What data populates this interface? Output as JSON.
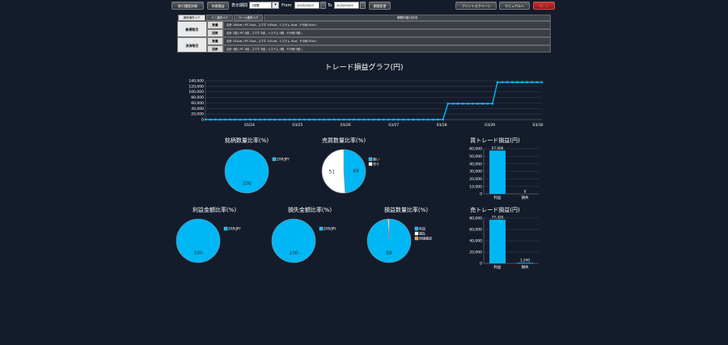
{
  "toolbar": {
    "btn_detail": "取引履歴詳細",
    "btn_annual": "年間損益",
    "period_label": "表示期間",
    "period_value": "1週間",
    "from_label": "From",
    "from_value": "2025/03/23",
    "to_label": "To",
    "to_value": "2025/03/29",
    "btn_change": "期間変更",
    "btn_print": "プリントスクリーン",
    "btn_manual": "マニュアルへ",
    "btn_close": "閉じる"
  },
  "summary": {
    "tabs": [
      "通常通貨ペア",
      "ミニ通貨ペア",
      "ラージ通貨ペア"
    ],
    "header": "期間内取引状況",
    "groups": [
      {
        "label": "新規取引",
        "rows": [
          {
            "sub": "数量",
            "value": "合計 100Lot ( PC 0Lot , スマホ 100Lot , システム 0Lot , その他 0Lot )"
          },
          {
            "sub": "回数",
            "value": "合計 2回 ( PC 0回 , スマホ 2回 , システム 0回 , その他 0回 )"
          }
        ]
      },
      {
        "label": "決済取引",
        "rows": [
          {
            "sub": "数量",
            "value": "合計 101Lot ( PC 0Lot , スマホ 101Lot , システム 0Lot , その他 0Lot )"
          },
          {
            "sub": "回数",
            "value": "合計 4回 ( PC 1回 , スマホ 3回 , システム 0回 , その他 0回 )"
          }
        ]
      }
    ]
  },
  "line_chart_title": "トレード損益グラフ(円)",
  "pie_titles": {
    "symbol_qty": "銘柄数量比率(%)",
    "side_qty": "売買数量比率(%)",
    "profit_amt": "利益金額比率(%)",
    "loss_amt": "損失金額比率(%)",
    "pl_qty": "損益数量比率(%)"
  },
  "bar_titles": {
    "buy": "買トレード損益(円)",
    "sell": "売トレード損益(円)"
  },
  "colors": {
    "accent": "#00b7f5",
    "white": "#ffffff",
    "orange": "#ff8c3a",
    "background": "#141c2b"
  },
  "chart_data": [
    {
      "type": "line",
      "title": "トレード損益グラフ(円)",
      "x_ticks": [
        "03/24",
        "03/25",
        "03/26",
        "03/27",
        "03/28",
        "03/29",
        "03/30"
      ],
      "y_ticks": [
        "0",
        "20,000",
        "40,000",
        "60,000",
        "80,000",
        "100,000",
        "120,000",
        "140,000"
      ],
      "ylim": [
        0,
        140000
      ],
      "series": [
        {
          "values": [
            0,
            0,
            0,
            0,
            0,
            0,
            0,
            0,
            0,
            0,
            0,
            0,
            0,
            0,
            0,
            0,
            0,
            0,
            0,
            0,
            0,
            0,
            0,
            0,
            0,
            0,
            0,
            0,
            0,
            0,
            0,
            0,
            0,
            0,
            0,
            0,
            0,
            0,
            0,
            0,
            0,
            0,
            0,
            0,
            0,
            0,
            0,
            0,
            0,
            57500,
            57500,
            57500,
            57500,
            57500,
            57500,
            57500,
            57500,
            57500,
            57500,
            134820,
            134820,
            134820,
            134820,
            134820,
            134820,
            134820,
            134820,
            134820,
            134820
          ]
        }
      ]
    },
    {
      "type": "pie",
      "title": "銘柄数量比率(%)",
      "slices": [
        {
          "label": "ZAR/JPY",
          "value": 100
        }
      ]
    },
    {
      "type": "pie",
      "title": "売買数量比率(%)",
      "slices": [
        {
          "label": "買い",
          "value": 49
        },
        {
          "label": "売り",
          "value": 51
        }
      ]
    },
    {
      "type": "pie",
      "title": "利益金額比率(%)",
      "slices": [
        {
          "label": "ZAR/JPY",
          "value": 100
        }
      ]
    },
    {
      "type": "pie",
      "title": "損失金額比率(%)",
      "slices": [
        {
          "label": "ZAR/JPY",
          "value": 100
        }
      ]
    },
    {
      "type": "pie",
      "title": "損益数量比率(%)",
      "slices": [
        {
          "label": "利益",
          "value": 99
        },
        {
          "label": "損失",
          "value": 1
        },
        {
          "label": "同値撤退",
          "value": 0
        }
      ]
    },
    {
      "type": "bar",
      "title": "買トレード損益(円)",
      "categories": [
        "利益",
        "損失"
      ],
      "values": [
        57500,
        0
      ],
      "value_labels": [
        "57,500",
        "0"
      ],
      "y_ticks": [
        "0",
        "10,000",
        "20,000",
        "30,000",
        "40,000",
        "50,000",
        "60,000"
      ],
      "ylim": [
        0,
        60000
      ]
    },
    {
      "type": "bar",
      "title": "売トレード損益(円)",
      "categories": [
        "利益",
        "損失"
      ],
      "values": [
        77320,
        1240
      ],
      "value_labels": [
        "77,320",
        "1,240"
      ],
      "y_ticks": [
        "0",
        "20,000",
        "40,000",
        "60,000",
        "80,000"
      ],
      "ylim": [
        0,
        80000
      ]
    }
  ]
}
